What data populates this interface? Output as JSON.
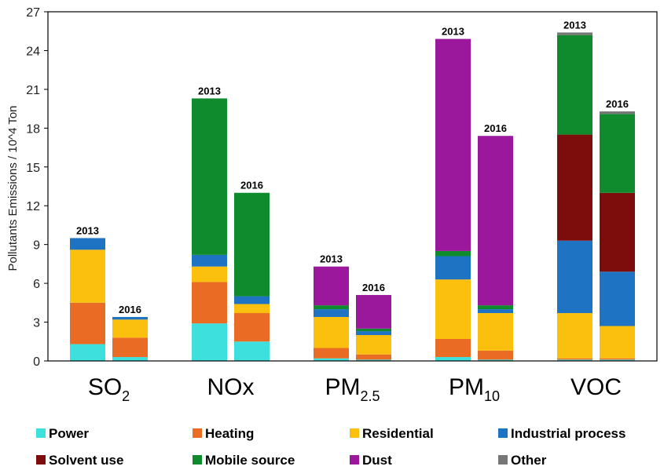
{
  "chart_data": {
    "type": "bar",
    "stacked": true,
    "ylabel": "Pollutants Emissions / 10^4 Ton",
    "ylim": [
      0,
      27
    ],
    "yticks": [
      "0",
      "3",
      "6",
      "9",
      "12",
      "15",
      "18",
      "21",
      "24",
      "27"
    ],
    "categories": [
      {
        "base": "SO",
        "sub": "2"
      },
      {
        "base": "NOx",
        "sub": ""
      },
      {
        "base": "PM",
        "sub": "2.5"
      },
      {
        "base": "PM",
        "sub": "10"
      },
      {
        "base": "VOC",
        "sub": ""
      }
    ],
    "years": [
      "2013",
      "2016"
    ],
    "colors": {
      "Power": "#3ee0de",
      "Heating": "#ea6b23",
      "Residential": "#fbbf0e",
      "Industrial process": "#1f73c3",
      "Solvent use": "#7d0d0d",
      "Mobile source": "#0f8a2c",
      "Dust": "#9b179b",
      "Other": "#777777"
    },
    "series": [
      {
        "name": "Power",
        "values": [
          [
            1.3,
            0.3
          ],
          [
            2.9,
            1.5
          ],
          [
            0.2,
            0.1
          ],
          [
            0.3,
            0.1
          ],
          [
            0.1,
            0.1
          ]
        ]
      },
      {
        "name": "Heating",
        "values": [
          [
            3.2,
            1.5
          ],
          [
            3.2,
            2.2
          ],
          [
            0.8,
            0.4
          ],
          [
            1.4,
            0.7
          ],
          [
            0.1,
            0.1
          ]
        ]
      },
      {
        "name": "Residential",
        "values": [
          [
            4.1,
            1.4
          ],
          [
            1.2,
            0.7
          ],
          [
            2.4,
            1.5
          ],
          [
            4.6,
            2.9
          ],
          [
            3.5,
            2.5
          ]
        ]
      },
      {
        "name": "Industrial process",
        "values": [
          [
            0.9,
            0.2
          ],
          [
            0.9,
            0.6
          ],
          [
            0.6,
            0.3
          ],
          [
            1.8,
            0.3
          ],
          [
            5.6,
            4.2
          ]
        ]
      },
      {
        "name": "Solvent use",
        "values": [
          [
            0,
            0
          ],
          [
            0,
            0
          ],
          [
            0,
            0
          ],
          [
            0,
            0
          ],
          [
            8.2,
            6.1
          ]
        ]
      },
      {
        "name": "Mobile source",
        "values": [
          [
            0,
            0
          ],
          [
            12.1,
            8.0
          ],
          [
            0.3,
            0.2
          ],
          [
            0.4,
            0.3
          ],
          [
            7.7,
            6.1
          ]
        ]
      },
      {
        "name": "Dust",
        "values": [
          [
            0,
            0
          ],
          [
            0,
            0
          ],
          [
            3.0,
            2.6
          ],
          [
            16.4,
            13.1
          ],
          [
            0,
            0
          ]
        ]
      },
      {
        "name": "Other",
        "values": [
          [
            0,
            0
          ],
          [
            0,
            0
          ],
          [
            0,
            0
          ],
          [
            0,
            0
          ],
          [
            0.2,
            0.2
          ]
        ]
      }
    ]
  }
}
